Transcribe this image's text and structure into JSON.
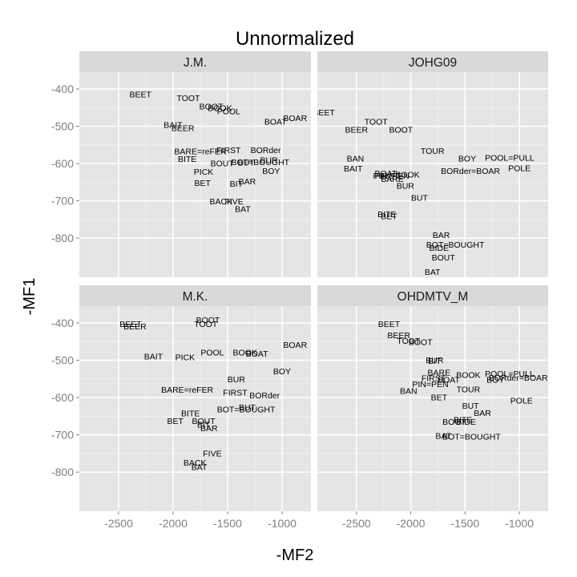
{
  "chart_data": {
    "type": "scatter",
    "title": "Unnormalized",
    "xlabel": "-MF2",
    "ylabel": "-MF1",
    "x_ticks": [
      -2500,
      -2000,
      -1500,
      -1000
    ],
    "y_ticks": [
      -400,
      -500,
      -600,
      -700,
      -800
    ],
    "xlim": [
      -2860,
      -735
    ],
    "ylim": [
      -905,
      -355
    ],
    "grid": true,
    "facets": [
      {
        "name": "J.M.",
        "points": [
          {
            "label": "BEET",
            "x": -2300,
            "y": -415
          },
          {
            "label": "TOOT",
            "x": -1860,
            "y": -425
          },
          {
            "label": "BOOT",
            "x": -1650,
            "y": -447
          },
          {
            "label": "BOOK",
            "x": -1570,
            "y": -452
          },
          {
            "label": "POOL",
            "x": -1490,
            "y": -460
          },
          {
            "label": "BOAT",
            "x": -1060,
            "y": -488
          },
          {
            "label": "BOAR",
            "x": -880,
            "y": -478
          },
          {
            "label": "BAIT",
            "x": -2000,
            "y": -497
          },
          {
            "label": "BEER",
            "x": -1910,
            "y": -505
          },
          {
            "label": "FIRST",
            "x": -1490,
            "y": -565
          },
          {
            "label": "BORder",
            "x": -1150,
            "y": -565
          },
          {
            "label": "BARE=reFER",
            "x": -1750,
            "y": -568
          },
          {
            "label": "BITE",
            "x": -1870,
            "y": -588
          },
          {
            "label": "BOUT",
            "x": -1550,
            "y": -600
          },
          {
            "label": "BOT=BOUGHT",
            "x": -1200,
            "y": -597
          },
          {
            "label": "BUR",
            "x": -1120,
            "y": -591
          },
          {
            "label": "BUT",
            "x": -1330,
            "y": -598
          },
          {
            "label": "BOY",
            "x": -1100,
            "y": -620
          },
          {
            "label": "PICK",
            "x": -1720,
            "y": -623
          },
          {
            "label": "BAR",
            "x": -1320,
            "y": -648
          },
          {
            "label": "BIT",
            "x": -1420,
            "y": -655
          },
          {
            "label": "BET",
            "x": -1730,
            "y": -653
          },
          {
            "label": "BACK",
            "x": -1560,
            "y": -702
          },
          {
            "label": "FIVE",
            "x": -1440,
            "y": -702
          },
          {
            "label": "BAT",
            "x": -1360,
            "y": -722
          }
        ]
      },
      {
        "name": "JOHG09",
        "points": [
          {
            "label": "BEET",
            "x": -2800,
            "y": -463
          },
          {
            "label": "TOOT",
            "x": -2320,
            "y": -488
          },
          {
            "label": "BEER",
            "x": -2500,
            "y": -510
          },
          {
            "label": "BOOT",
            "x": -2090,
            "y": -510
          },
          {
            "label": "TOUR",
            "x": -1800,
            "y": -567
          },
          {
            "label": "BAN",
            "x": -2510,
            "y": -587
          },
          {
            "label": "BOY",
            "x": -1480,
            "y": -587
          },
          {
            "label": "POOL=PULL",
            "x": -1090,
            "y": -585
          },
          {
            "label": "BAIT",
            "x": -2530,
            "y": -614
          },
          {
            "label": "POLE",
            "x": -1000,
            "y": -613
          },
          {
            "label": "BORder=BOAR",
            "x": -1450,
            "y": -620
          },
          {
            "label": "BOAT",
            "x": -2230,
            "y": -627
          },
          {
            "label": "BOOK",
            "x": -2030,
            "y": -630
          },
          {
            "label": "FIRST",
            "x": -2220,
            "y": -633
          },
          {
            "label": "PIN=PEN",
            "x": -2180,
            "y": -633
          },
          {
            "label": "BARE",
            "x": -2170,
            "y": -642
          },
          {
            "label": "BUR",
            "x": -2050,
            "y": -660
          },
          {
            "label": "BUT",
            "x": -1920,
            "y": -692
          },
          {
            "label": "BITE",
            "x": -2220,
            "y": -736
          },
          {
            "label": "BET",
            "x": -2200,
            "y": -742
          },
          {
            "label": "BAR",
            "x": -1720,
            "y": -792
          },
          {
            "label": "BOT=BOUGHT",
            "x": -1590,
            "y": -818
          },
          {
            "label": "BIDE",
            "x": -1740,
            "y": -827
          },
          {
            "label": "BOUT",
            "x": -1700,
            "y": -852
          },
          {
            "label": "BAT",
            "x": -1800,
            "y": -891
          }
        ]
      },
      {
        "name": "M.K.",
        "points": [
          {
            "label": "BOOT",
            "x": -1680,
            "y": -393
          },
          {
            "label": "BEET",
            "x": -2390,
            "y": -403
          },
          {
            "label": "TOOT",
            "x": -1700,
            "y": -403
          },
          {
            "label": "BEER",
            "x": -2350,
            "y": -410
          },
          {
            "label": "BOAR",
            "x": -880,
            "y": -459
          },
          {
            "label": "BOOK",
            "x": -1340,
            "y": -480
          },
          {
            "label": "POOL",
            "x": -1640,
            "y": -480
          },
          {
            "label": "BOAT",
            "x": -1230,
            "y": -483
          },
          {
            "label": "BAIT",
            "x": -2180,
            "y": -490
          },
          {
            "label": "PICK",
            "x": -1890,
            "y": -493
          },
          {
            "label": "BOY",
            "x": -1000,
            "y": -530
          },
          {
            "label": "BUR",
            "x": -1420,
            "y": -552
          },
          {
            "label": "BARE=reFER",
            "x": -1870,
            "y": -579
          },
          {
            "label": "FIRST",
            "x": -1430,
            "y": -587
          },
          {
            "label": "BORder",
            "x": -1160,
            "y": -595
          },
          {
            "label": "BUT",
            "x": -1320,
            "y": -627
          },
          {
            "label": "BOT=BOUGHT",
            "x": -1330,
            "y": -632
          },
          {
            "label": "BITE",
            "x": -1840,
            "y": -643
          },
          {
            "label": "BOUT",
            "x": -1720,
            "y": -663
          },
          {
            "label": "BIT",
            "x": -1720,
            "y": -673
          },
          {
            "label": "BET",
            "x": -1980,
            "y": -663
          },
          {
            "label": "BAR",
            "x": -1670,
            "y": -683
          },
          {
            "label": "FIVE",
            "x": -1640,
            "y": -750
          },
          {
            "label": "BACK",
            "x": -1800,
            "y": -775
          },
          {
            "label": "BAT",
            "x": -1760,
            "y": -787
          }
        ]
      },
      {
        "name": "OHDMTV_M",
        "points": [
          {
            "label": "BEET",
            "x": -2200,
            "y": -403
          },
          {
            "label": "BEER",
            "x": -2110,
            "y": -433
          },
          {
            "label": "TOOT",
            "x": -2020,
            "y": -448
          },
          {
            "label": "BOOT",
            "x": -1910,
            "y": -452
          },
          {
            "label": "BUR",
            "x": -1780,
            "y": -500
          },
          {
            "label": "BIT",
            "x": -1780,
            "y": -502
          },
          {
            "label": "BARE",
            "x": -1740,
            "y": -533
          },
          {
            "label": "BOOK",
            "x": -1470,
            "y": -540
          },
          {
            "label": "POOL=PULL",
            "x": -1090,
            "y": -537
          },
          {
            "label": "FIRST",
            "x": -1790,
            "y": -548
          },
          {
            "label": "BOAT",
            "x": -1650,
            "y": -553
          },
          {
            "label": "BORder=BOAR",
            "x": -1010,
            "y": -547
          },
          {
            "label": "BOY",
            "x": -1220,
            "y": -553
          },
          {
            "label": "PIN=PEN",
            "x": -1820,
            "y": -565
          },
          {
            "label": "TOUR",
            "x": -1470,
            "y": -578
          },
          {
            "label": "BAN",
            "x": -2020,
            "y": -583
          },
          {
            "label": "BET",
            "x": -1740,
            "y": -600
          },
          {
            "label": "POLE",
            "x": -980,
            "y": -608
          },
          {
            "label": "BUT",
            "x": -1450,
            "y": -622
          },
          {
            "label": "BAR",
            "x": -1340,
            "y": -642
          },
          {
            "label": "BITE",
            "x": -1520,
            "y": -660
          },
          {
            "label": "BIDE",
            "x": -1490,
            "y": -665
          },
          {
            "label": "BOUT",
            "x": -1600,
            "y": -665
          },
          {
            "label": "BAT",
            "x": -1700,
            "y": -703
          },
          {
            "label": "BOT=BOUGHT",
            "x": -1440,
            "y": -705
          }
        ]
      }
    ]
  }
}
